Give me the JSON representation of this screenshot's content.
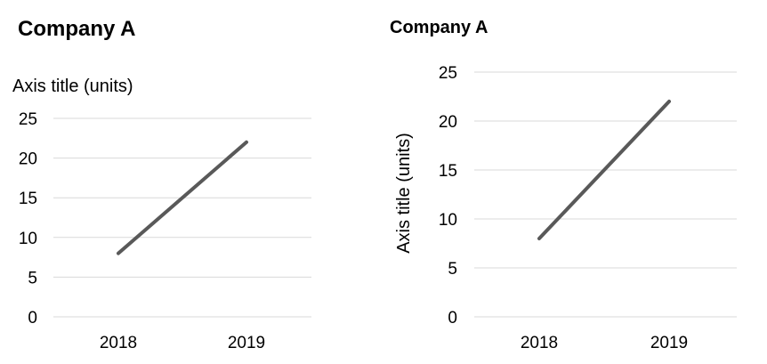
{
  "chart_data": [
    {
      "type": "line",
      "title": "Company A",
      "ylabel": "Axis title (units)",
      "ylabel_placement": "top-horizontal",
      "categories": [
        "2018",
        "2019"
      ],
      "values": [
        8,
        22
      ],
      "ylim": [
        0,
        25
      ],
      "yticks": [
        "0",
        "5",
        "10",
        "15",
        "20",
        "25"
      ],
      "grid": true,
      "line_color": "#595959",
      "grid_color": "#d9d9d9"
    },
    {
      "type": "line",
      "title": "Company A",
      "ylabel": "Axis title (units)",
      "ylabel_placement": "left-rotated",
      "categories": [
        "2018",
        "2019"
      ],
      "values": [
        8,
        22
      ],
      "ylim": [
        0,
        25
      ],
      "yticks": [
        "0",
        "5",
        "10",
        "15",
        "20",
        "25"
      ],
      "grid": true,
      "line_color": "#595959",
      "grid_color": "#d9d9d9"
    }
  ]
}
